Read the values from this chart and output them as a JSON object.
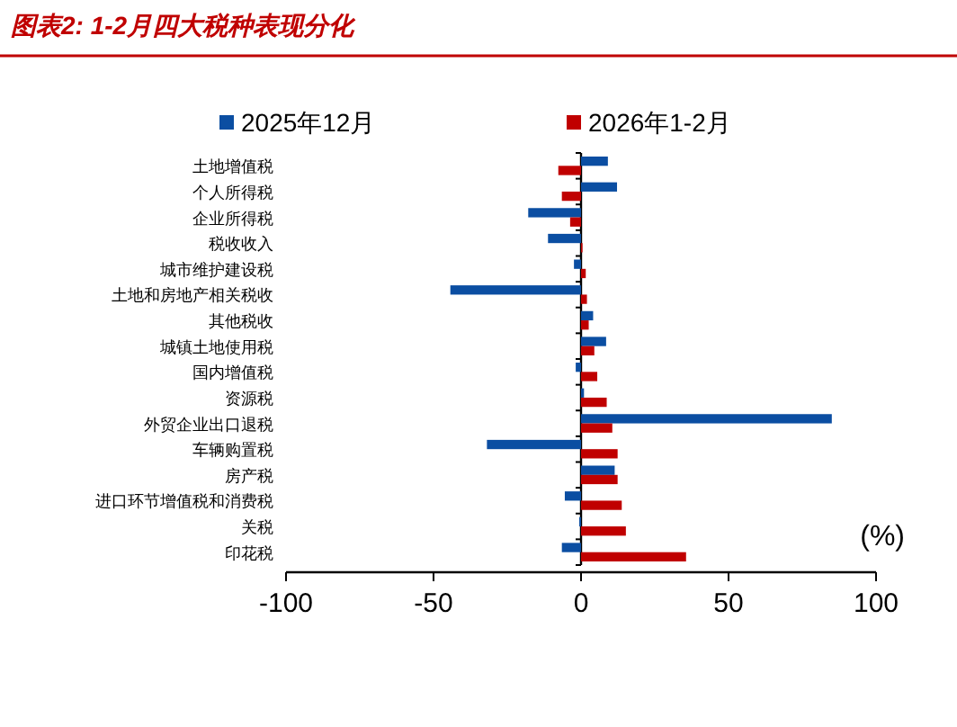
{
  "chart_data": {
    "type": "bar",
    "orientation": "horizontal",
    "title": "图表2: 1-2月四大税种表现分化",
    "categories": [
      "土地增值税",
      "个人所得税",
      "企业所得税",
      "税收收入",
      "城市维护建设税",
      "土地和房地产相关税收",
      "其他税收",
      "城镇土地使用税",
      "国内增值税",
      "资源税",
      "外贸企业出口退税",
      "车辆购置税",
      "房产税",
      "进口环节增值税和消费税",
      "关税",
      "印花税"
    ],
    "series": [
      {
        "name": "2025年12月",
        "color": "#0b4ea2",
        "values": [
          9.1,
          12.2,
          -17.9,
          -11.2,
          -2.4,
          -44.3,
          4.1,
          8.5,
          -1.8,
          1.0,
          85,
          -31.9,
          11.4,
          -5.5,
          -0.6,
          -6.5
        ]
      },
      {
        "name": "2026年1-2月",
        "color": "#c00000",
        "values": [
          -7.7,
          -6.5,
          -3.7,
          0.5,
          1.6,
          2.0,
          2.6,
          4.5,
          5.5,
          8.7,
          10.6,
          12.4,
          12.4,
          13.8,
          15.2,
          35.6
        ]
      }
    ],
    "xlim": [
      -100,
      100
    ],
    "xticks": [
      -100,
      -50,
      0,
      50,
      100
    ],
    "annotations": [
      {
        "text": "(%)"
      }
    ],
    "legend": "top"
  }
}
